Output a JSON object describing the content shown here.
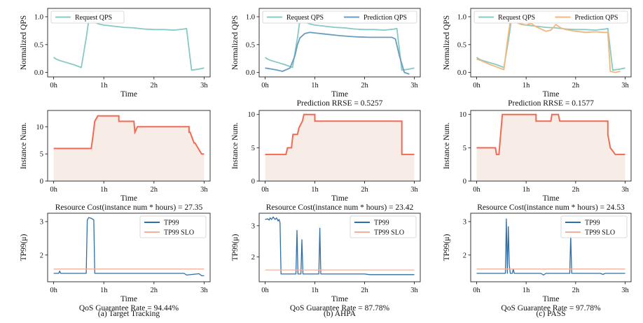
{
  "colors": {
    "request": "#86c9c5",
    "prediction_ahpa": "#6a9cc0",
    "prediction_pass": "#f3b77a",
    "instance": "#f26a55",
    "instance_fill": "#f7ece6",
    "tp99": "#2f6fa6",
    "slo": "#f5b09a"
  },
  "columns": [
    {
      "caption": "(a) Target Tracking"
    },
    {
      "caption": "(b) AHPA"
    },
    {
      "caption": "(c) PASS"
    }
  ],
  "chart_data": [
    {
      "type": "line",
      "id": "qps-tt",
      "xlabel": "Time",
      "ylabel": "Normalized QPS",
      "xticks": [
        "0h",
        "1h",
        "2h",
        "3h"
      ],
      "xlim": [
        -0.12,
        3.12
      ],
      "ylim": [
        -0.08,
        1.15
      ],
      "yticks": [
        0.0,
        0.5,
        1.0
      ],
      "ytick_labels": [
        "0.0",
        "0.5",
        "1.0"
      ],
      "legend": "top-left",
      "annotation": "",
      "series": [
        {
          "name": "Request QPS",
          "color_key": "request",
          "x": [
            0,
            0.05,
            0.1,
            0.25,
            0.4,
            0.55,
            0.65,
            0.7,
            0.8,
            0.9,
            1.0,
            1.2,
            1.4,
            1.6,
            1.8,
            2.0,
            2.2,
            2.4,
            2.6,
            2.65,
            2.75,
            2.9,
            3.0
          ],
          "y": [
            0.27,
            0.24,
            0.22,
            0.18,
            0.14,
            0.09,
            0.62,
            0.94,
            0.91,
            0.87,
            0.85,
            0.83,
            0.81,
            0.8,
            0.78,
            0.77,
            0.77,
            0.76,
            0.78,
            0.79,
            0.04,
            0.06,
            0.08
          ]
        }
      ]
    },
    {
      "type": "line",
      "id": "qps-ahpa",
      "xlabel": "Time",
      "ylabel": "Normalized QPS",
      "xticks": [
        "0h",
        "1h",
        "2h",
        "3h"
      ],
      "xlim": [
        -0.12,
        3.12
      ],
      "ylim": [
        -0.08,
        1.15
      ],
      "yticks": [
        0.0,
        0.5,
        1.0
      ],
      "ytick_labels": [
        "0.0",
        "0.5",
        "1.0"
      ],
      "legend": "top",
      "annotation": "Prediction RRSE = 0.5257",
      "series": [
        {
          "name": "Request QPS",
          "color_key": "request",
          "x": [
            0,
            0.05,
            0.1,
            0.25,
            0.4,
            0.55,
            0.65,
            0.7,
            0.8,
            0.9,
            1.0,
            1.2,
            1.4,
            1.6,
            1.8,
            2.0,
            2.2,
            2.4,
            2.6,
            2.65,
            2.75,
            2.9,
            3.0
          ],
          "y": [
            0.27,
            0.24,
            0.22,
            0.18,
            0.14,
            0.09,
            0.62,
            0.94,
            0.91,
            0.87,
            0.85,
            0.83,
            0.81,
            0.8,
            0.78,
            0.77,
            0.77,
            0.76,
            0.78,
            0.79,
            0.04,
            0.06,
            0.08
          ]
        },
        {
          "name": "Prediction QPS",
          "color_key": "prediction_ahpa",
          "x": [
            0,
            0.2,
            0.35,
            0.5,
            0.6,
            0.65,
            0.7,
            0.8,
            0.9,
            1.0,
            1.2,
            1.5,
            1.8,
            2.1,
            2.4,
            2.55,
            2.62,
            2.7,
            2.8,
            2.9
          ],
          "y": [
            0.08,
            0.05,
            0.02,
            0.08,
            0.3,
            0.5,
            0.62,
            0.7,
            0.72,
            0.71,
            0.69,
            0.66,
            0.64,
            0.63,
            0.63,
            0.63,
            0.6,
            0.3,
            0.0,
            -0.03
          ]
        }
      ]
    },
    {
      "type": "line",
      "id": "qps-pass",
      "xlabel": "Time",
      "ylabel": "Normalized QPS",
      "xticks": [
        "0h",
        "1h",
        "2h",
        "3h"
      ],
      "xlim": [
        -0.12,
        3.12
      ],
      "ylim": [
        -0.08,
        1.15
      ],
      "yticks": [
        0.0,
        0.5,
        1.0
      ],
      "ytick_labels": [
        "0.0",
        "0.5",
        "1.0"
      ],
      "legend": "top",
      "annotation": "Prediction RRSE = 0.1577",
      "series": [
        {
          "name": "Request QPS",
          "color_key": "request",
          "x": [
            0,
            0.05,
            0.1,
            0.25,
            0.4,
            0.55,
            0.65,
            0.7,
            0.8,
            0.9,
            1.0,
            1.2,
            1.4,
            1.6,
            1.8,
            2.0,
            2.2,
            2.4,
            2.6,
            2.65,
            2.75,
            2.9,
            3.0
          ],
          "y": [
            0.27,
            0.24,
            0.22,
            0.18,
            0.14,
            0.09,
            0.62,
            0.94,
            0.91,
            0.87,
            0.85,
            0.83,
            0.81,
            0.8,
            0.78,
            0.77,
            0.77,
            0.76,
            0.78,
            0.79,
            0.04,
            0.06,
            0.08
          ]
        },
        {
          "name": "Prediction QPS",
          "color_key": "prediction_pass",
          "x": [
            0,
            0.1,
            0.25,
            0.4,
            0.55,
            0.62,
            0.68,
            0.8,
            0.9,
            1.0,
            1.1,
            1.2,
            1.3,
            1.4,
            1.5,
            1.6,
            1.7,
            1.8,
            2.0,
            2.2,
            2.4,
            2.55,
            2.65,
            2.7,
            2.8,
            2.9
          ],
          "y": [
            0.24,
            0.21,
            0.15,
            0.1,
            0.05,
            0.55,
            0.92,
            0.9,
            0.86,
            0.85,
            0.88,
            0.82,
            0.78,
            0.74,
            0.76,
            0.86,
            0.8,
            0.77,
            0.74,
            0.72,
            0.73,
            0.72,
            0.72,
            0.02,
            0.0,
            0.02
          ]
        }
      ]
    },
    {
      "type": "area",
      "id": "inst-tt",
      "xlabel": "Time",
      "ylabel": "Instance Num.",
      "xticks": [
        "0h",
        "1h",
        "2h",
        "3h"
      ],
      "xlim": [
        -0.12,
        3.12
      ],
      "ylim": [
        0,
        13
      ],
      "yticks": [
        0,
        5,
        10
      ],
      "ytick_labels": [
        "0",
        "5",
        "10"
      ],
      "legend": "none",
      "annotation": "Resource Cost(instance num * hours) = 27.35",
      "series": [
        {
          "name": "Instance Num.",
          "color_key": "instance",
          "x": [
            0,
            0.75,
            0.78,
            0.82,
            0.88,
            1.3,
            1.3,
            1.6,
            1.62,
            1.67,
            2.7,
            2.7,
            2.72,
            2.8,
            2.82,
            2.95,
            3.0
          ],
          "y": [
            6,
            6,
            8,
            11,
            12,
            12,
            11,
            11,
            9,
            10,
            10,
            9,
            9,
            7,
            7,
            5,
            5
          ]
        }
      ]
    },
    {
      "type": "area",
      "id": "inst-ahpa",
      "xlabel": "Time",
      "ylabel": "Instance Num.",
      "xticks": [
        "0h",
        "1h",
        "2h",
        "3h"
      ],
      "xlim": [
        -0.12,
        3.12
      ],
      "ylim": [
        0,
        10.6
      ],
      "yticks": [
        0,
        5,
        10
      ],
      "ytick_labels": [
        "0",
        "5",
        "10"
      ],
      "legend": "none",
      "annotation": "Resource Cost(instance num * hours) = 23.42",
      "series": [
        {
          "name": "Instance Num.",
          "color_key": "instance",
          "x": [
            0,
            0.3,
            0.32,
            0.42,
            0.45,
            0.53,
            0.56,
            0.65,
            0.68,
            0.75,
            0.78,
            1.0,
            1.0,
            2.75,
            2.75,
            3.0
          ],
          "y": [
            4,
            4,
            4,
            4,
            5,
            5,
            7,
            7,
            8,
            9,
            10,
            10,
            9,
            9,
            4,
            4
          ]
        }
      ]
    },
    {
      "type": "area",
      "id": "inst-pass",
      "xlabel": "Time",
      "ylabel": "Instance Num.",
      "xticks": [
        "0h",
        "1h",
        "2h",
        "3h"
      ],
      "xlim": [
        -0.12,
        3.12
      ],
      "ylim": [
        0,
        10.6
      ],
      "yticks": [
        0,
        5,
        10
      ],
      "ytick_labels": [
        "0",
        "5",
        "10"
      ],
      "legend": "none",
      "annotation": "Resource Cost(instance num * hours) = 24.53",
      "series": [
        {
          "name": "Instance Num.",
          "color_key": "instance",
          "x": [
            0,
            0.38,
            0.4,
            0.45,
            0.52,
            1.2,
            1.2,
            1.5,
            1.52,
            1.65,
            1.68,
            2.65,
            2.65,
            2.7,
            2.8,
            3.0
          ],
          "y": [
            5,
            5,
            4,
            4,
            10,
            10,
            9,
            9,
            10,
            10,
            9,
            9,
            7,
            5,
            4,
            4
          ]
        }
      ]
    },
    {
      "type": "line",
      "id": "tp99-tt",
      "xlabel": "Time",
      "ylabel": "TP99(μ)",
      "xticks": [
        "0h",
        "1h",
        "2h",
        "3h"
      ],
      "xlim": [
        -0.12,
        3.12
      ],
      "ylim": [
        1.2,
        3.25
      ],
      "yticks": [
        2,
        3
      ],
      "ytick_labels": [
        "2",
        "3"
      ],
      "legend": "top-right",
      "annotation": "QoS Guarantee Rate = 94.44%",
      "series": [
        {
          "name": "TP99",
          "color_key": "tp99",
          "x": [
            0,
            0.1,
            0.12,
            0.14,
            0.6,
            0.65,
            0.67,
            0.7,
            0.75,
            0.8,
            0.82,
            0.84,
            1.5,
            2.2,
            2.6,
            2.65,
            2.9,
            2.95,
            3.0
          ],
          "y": [
            1.45,
            1.45,
            1.52,
            1.45,
            1.45,
            1.45,
            3.05,
            3.12,
            3.1,
            3.05,
            1.45,
            1.45,
            1.45,
            1.45,
            1.45,
            1.4,
            1.44,
            1.38,
            1.38
          ]
        },
        {
          "name": "TP99 SLO",
          "color_key": "slo",
          "x": [
            0,
            3.0
          ],
          "y": [
            1.58,
            1.58
          ]
        }
      ]
    },
    {
      "type": "line",
      "id": "tp99-ahpa",
      "xlabel": "Time",
      "ylabel": "TP99(μ)",
      "xticks": [
        "0h",
        "1h",
        "2h",
        "3h"
      ],
      "xlim": [
        -0.12,
        3.12
      ],
      "ylim": [
        1.2,
        3.4
      ],
      "yticks": [
        2,
        3
      ],
      "ytick_labels": [
        "2",
        "3"
      ],
      "legend": "top-right",
      "annotation": "QoS Guarantee Rate = 87.78%",
      "series": [
        {
          "name": "TP99",
          "color_key": "tp99",
          "x": [
            0,
            0.05,
            0.08,
            0.1,
            0.13,
            0.16,
            0.2,
            0.23,
            0.26,
            0.28,
            0.3,
            0.32,
            0.62,
            0.64,
            0.66,
            0.72,
            0.74,
            0.76,
            1.08,
            1.1,
            1.12,
            2.0,
            2.1,
            3.0
          ],
          "y": [
            3.2,
            3.22,
            3.18,
            3.25,
            3.2,
            3.28,
            3.2,
            3.25,
            3.15,
            3.2,
            3.1,
            1.45,
            1.45,
            2.85,
            1.45,
            1.45,
            2.55,
            1.45,
            1.45,
            2.92,
            1.45,
            1.45,
            1.43,
            1.43
          ]
        },
        {
          "name": "TP99 SLO",
          "color_key": "slo",
          "x": [
            0,
            3.0
          ],
          "y": [
            1.58,
            1.58
          ]
        }
      ]
    },
    {
      "type": "line",
      "id": "tp99-pass",
      "xlabel": "Time",
      "ylabel": "TP99(μ)",
      "xticks": [
        "0h",
        "1h",
        "2h",
        "3h"
      ],
      "xlim": [
        -0.12,
        3.12
      ],
      "ylim": [
        1.2,
        3.25
      ],
      "yticks": [
        2,
        3
      ],
      "ytick_labels": [
        "2",
        "3"
      ],
      "legend": "top-right",
      "annotation": "QoS Guarantee Rate = 97.78%",
      "series": [
        {
          "name": "TP99",
          "color_key": "tp99",
          "x": [
            0,
            0.4,
            0.58,
            0.6,
            0.62,
            0.64,
            0.66,
            0.68,
            0.72,
            0.74,
            0.76,
            1.0,
            1.3,
            1.35,
            1.4,
            1.88,
            1.9,
            1.92,
            2.5,
            2.55,
            2.6,
            3.0
          ],
          "y": [
            1.45,
            1.45,
            1.45,
            3.08,
            1.45,
            2.85,
            1.7,
            1.45,
            1.45,
            1.58,
            1.45,
            1.45,
            1.45,
            1.4,
            1.45,
            1.45,
            2.58,
            1.45,
            1.45,
            1.42,
            1.45,
            1.45
          ]
        },
        {
          "name": "TP99 SLO",
          "color_key": "slo",
          "x": [
            0,
            3.0
          ],
          "y": [
            1.58,
            1.58
          ]
        }
      ]
    }
  ]
}
